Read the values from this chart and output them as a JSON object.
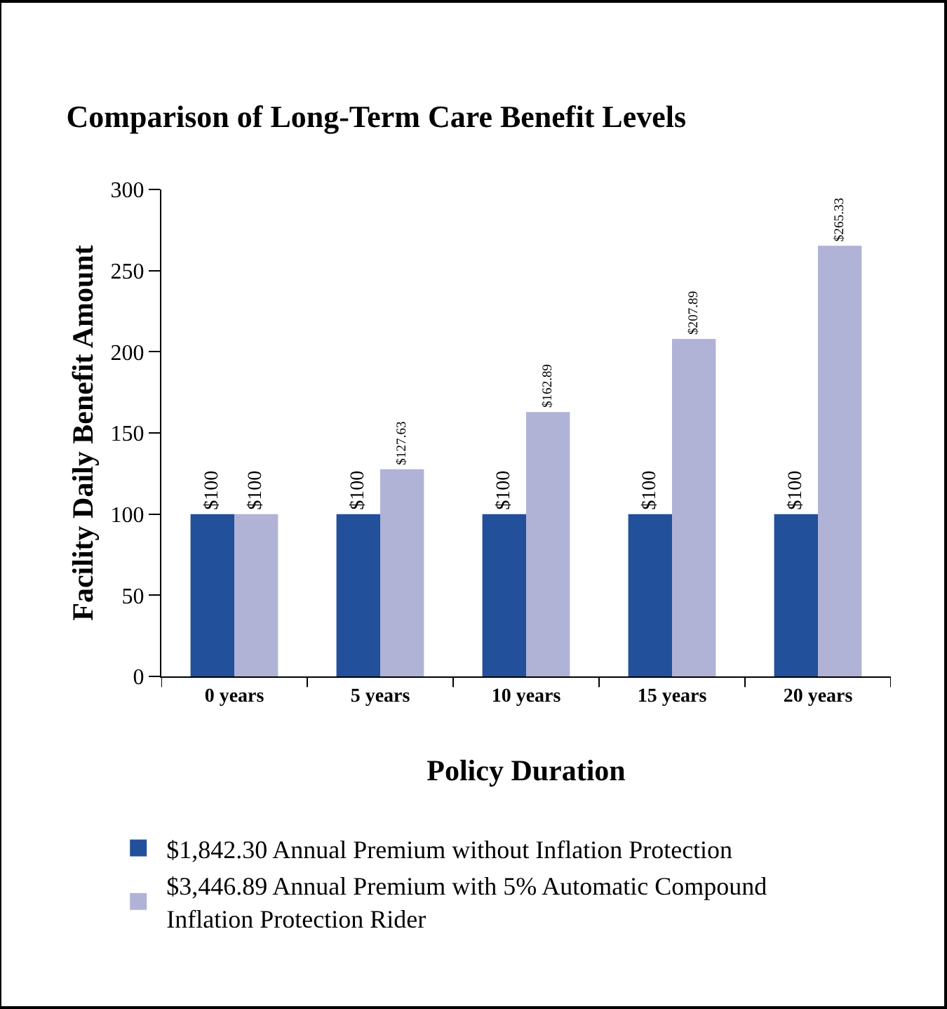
{
  "chart_data": {
    "type": "bar",
    "title": "Comparison of Long-Term Care Benefit Levels",
    "xlabel": "Policy Duration",
    "ylabel": "Facility Daily Benefit Amount",
    "categories": [
      "0 years",
      "5 years",
      "10 years",
      "15 years",
      "20 years"
    ],
    "series": [
      {
        "name": "$1,842.30 Annual Premium without Inflation Protection",
        "color": "#22509a",
        "values": [
          100,
          100,
          100,
          100,
          100
        ],
        "value_labels": [
          "$100",
          "$100",
          "$100",
          "$100",
          "$100"
        ]
      },
      {
        "name": "$3,446.89 Annual Premium with 5% Automatic Compound Inflation Protection Rider",
        "color": "#b0b3d6",
        "values": [
          100,
          127.63,
          162.89,
          207.89,
          265.33
        ],
        "value_labels": [
          "$100",
          "$127.63",
          "$162.89",
          "$207.89",
          "$265.33"
        ]
      }
    ],
    "ylim": [
      0,
      300
    ],
    "yticks": [
      0,
      50,
      100,
      150,
      200,
      250,
      300
    ],
    "grid": false,
    "legend": "bottom"
  }
}
